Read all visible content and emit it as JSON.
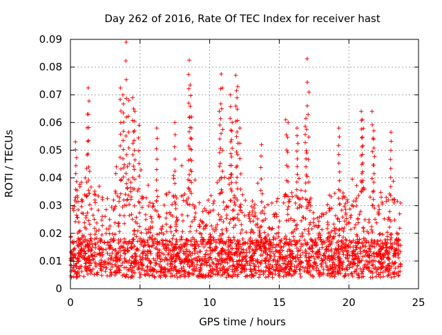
{
  "colors": {
    "marker": "#ff0000",
    "grid": "#a0a0a0",
    "axis": "#000000",
    "background": "#ffffff"
  },
  "chart_data": {
    "type": "scatter",
    "title": "Day 262 of 2016, Rate Of TEC Index for receiver hast",
    "xlabel": "GPS time / hours",
    "ylabel": "ROTI / TECUs",
    "xlim": [
      0,
      25
    ],
    "ylim": [
      0,
      0.09
    ],
    "grid": true,
    "marker": "plus",
    "x_ticks": [
      {
        "value": 0,
        "label": "0"
      },
      {
        "value": 5,
        "label": "5"
      },
      {
        "value": 10,
        "label": "10"
      },
      {
        "value": 15,
        "label": "15"
      },
      {
        "value": 20,
        "label": "20"
      },
      {
        "value": 25,
        "label": "25"
      }
    ],
    "y_ticks": [
      {
        "value": 0,
        "label": "0"
      },
      {
        "value": 0.01,
        "label": "0.01"
      },
      {
        "value": 0.02,
        "label": "0.02"
      },
      {
        "value": 0.03,
        "label": "0.03"
      },
      {
        "value": 0.04,
        "label": "0.04"
      },
      {
        "value": 0.05,
        "label": "0.05"
      },
      {
        "value": 0.06,
        "label": "0.06"
      },
      {
        "value": 0.07,
        "label": "0.07"
      },
      {
        "value": 0.08,
        "label": "0.08"
      },
      {
        "value": 0.09,
        "label": "0.09"
      }
    ],
    "data_range": {
      "x": [
        0,
        23.8
      ],
      "y": [
        0.002,
        0.089
      ]
    },
    "envelope": [
      [
        0.0,
        0.03
      ],
      [
        0.5,
        0.044
      ],
      [
        1.0,
        0.04
      ],
      [
        1.5,
        0.045
      ],
      [
        2.0,
        0.04
      ],
      [
        2.5,
        0.038
      ],
      [
        3.0,
        0.04
      ],
      [
        3.5,
        0.048
      ],
      [
        4.0,
        0.052
      ],
      [
        4.5,
        0.045
      ],
      [
        5.0,
        0.045
      ],
      [
        5.5,
        0.04
      ],
      [
        6.0,
        0.035
      ],
      [
        6.5,
        0.035
      ],
      [
        7.0,
        0.037
      ],
      [
        7.5,
        0.042
      ],
      [
        8.0,
        0.045
      ],
      [
        8.5,
        0.045
      ],
      [
        9.0,
        0.04
      ],
      [
        9.5,
        0.032
      ],
      [
        10.0,
        0.035
      ],
      [
        10.5,
        0.042
      ],
      [
        11.0,
        0.044
      ],
      [
        11.5,
        0.045
      ],
      [
        12.0,
        0.04
      ],
      [
        12.5,
        0.035
      ],
      [
        13.0,
        0.034
      ],
      [
        13.5,
        0.04
      ],
      [
        14.0,
        0.038
      ],
      [
        14.5,
        0.04
      ],
      [
        15.0,
        0.04
      ],
      [
        15.5,
        0.042
      ],
      [
        16.0,
        0.04
      ],
      [
        16.5,
        0.042
      ],
      [
        17.0,
        0.04
      ],
      [
        17.5,
        0.03
      ],
      [
        18.0,
        0.032
      ],
      [
        18.5,
        0.038
      ],
      [
        19.0,
        0.042
      ],
      [
        19.5,
        0.04
      ],
      [
        20.0,
        0.04
      ],
      [
        20.5,
        0.04
      ],
      [
        21.0,
        0.045
      ],
      [
        21.5,
        0.04
      ],
      [
        22.0,
        0.034
      ],
      [
        22.5,
        0.038
      ],
      [
        23.0,
        0.042
      ],
      [
        23.5,
        0.04
      ],
      [
        23.8,
        0.036
      ]
    ],
    "peaks": [
      {
        "x": 0.4,
        "y": 0.053
      },
      {
        "x": 1.3,
        "y": 0.0725
      },
      {
        "x": 1.2,
        "y": 0.063
      },
      {
        "x": 3.6,
        "y": 0.0725
      },
      {
        "x": 3.8,
        "y": 0.07
      },
      {
        "x": 4.0,
        "y": 0.089
      },
      {
        "x": 4.2,
        "y": 0.068
      },
      {
        "x": 4.5,
        "y": 0.069
      },
      {
        "x": 4.6,
        "y": 0.064
      },
      {
        "x": 4.9,
        "y": 0.059
      },
      {
        "x": 6.2,
        "y": 0.058
      },
      {
        "x": 7.5,
        "y": 0.06
      },
      {
        "x": 8.5,
        "y": 0.0825
      },
      {
        "x": 8.6,
        "y": 0.0735
      },
      {
        "x": 8.7,
        "y": 0.062
      },
      {
        "x": 10.8,
        "y": 0.0775
      },
      {
        "x": 10.9,
        "y": 0.0725
      },
      {
        "x": 10.7,
        "y": 0.064
      },
      {
        "x": 11.5,
        "y": 0.07
      },
      {
        "x": 11.9,
        "y": 0.077
      },
      {
        "x": 12.0,
        "y": 0.073
      },
      {
        "x": 12.2,
        "y": 0.058
      },
      {
        "x": 11.6,
        "y": 0.06
      },
      {
        "x": 13.7,
        "y": 0.052
      },
      {
        "x": 15.5,
        "y": 0.061
      },
      {
        "x": 15.6,
        "y": 0.06
      },
      {
        "x": 16.3,
        "y": 0.058
      },
      {
        "x": 17.0,
        "y": 0.083
      },
      {
        "x": 17.1,
        "y": 0.071
      },
      {
        "x": 16.9,
        "y": 0.0615
      },
      {
        "x": 19.3,
        "y": 0.058
      },
      {
        "x": 20.9,
        "y": 0.064
      },
      {
        "x": 21.0,
        "y": 0.061
      },
      {
        "x": 21.7,
        "y": 0.064
      },
      {
        "x": 21.8,
        "y": 0.057
      },
      {
        "x": 23.0,
        "y": 0.0565
      }
    ]
  }
}
